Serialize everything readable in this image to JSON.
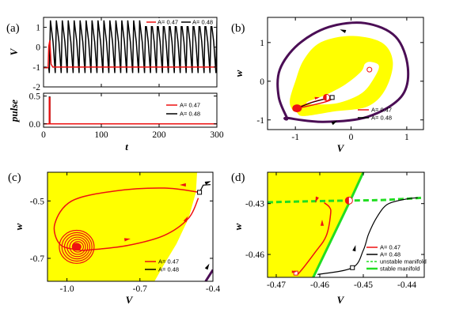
{
  "colors": {
    "red": "#ee1111",
    "black": "#000000",
    "yellow": "#ffff00",
    "purple": "#4b0e55",
    "green": "#22dd22"
  },
  "chart_data": [
    {
      "id": "a_top",
      "type": "line",
      "panel_label": "(a)",
      "xlabel": "",
      "ylabel": "V",
      "xlim": [
        0,
        300
      ],
      "ylim": [
        -2,
        1.5
      ],
      "x_ticks": [
        0,
        100,
        200,
        300
      ],
      "y_ticks": [
        -2,
        -1,
        0,
        1
      ],
      "y_tick_labels": [
        "-2",
        "-1",
        "0",
        "1"
      ],
      "legend": {
        "position": "top-right",
        "entries": [
          "A= 0.47",
          "A= 0.48"
        ]
      },
      "series": [
        {
          "name": "A= 0.47",
          "color": "red",
          "description": "small spike near t=10, then rests at V≈-1",
          "points": [
            [
              0,
              -1.03
            ],
            [
              8,
              -1.03
            ],
            [
              9,
              0.05
            ],
            [
              11,
              0.35
            ],
            [
              13,
              -0.85
            ],
            [
              16,
              -1.0
            ],
            [
              300,
              -1.0
            ]
          ]
        },
        {
          "name": "A= 0.48",
          "color": "black",
          "description": "sustained oscillation between -1.3 and 1.35 with period ≈10.3",
          "x_start": 10,
          "period": 10.3,
          "min": -1.3,
          "max": 1.35
        }
      ]
    },
    {
      "id": "a_bottom",
      "type": "line",
      "xlabel": "t",
      "ylabel": "pulse",
      "xlim": [
        0,
        300
      ],
      "ylim": [
        -0.06,
        0.55
      ],
      "x_ticks": [
        0,
        100,
        200,
        300
      ],
      "x_tick_labels": [
        "0",
        "100",
        "200",
        "300"
      ],
      "y_ticks": [
        0.0,
        0.5
      ],
      "y_tick_labels": [
        "0.0",
        "0.5"
      ],
      "legend": {
        "position": "right",
        "entries": [
          "A= 0.47",
          "A= 0.48"
        ]
      },
      "series": [
        {
          "name": "A= 0.47",
          "color": "red",
          "points": [
            [
              0,
              0
            ],
            [
              10,
              0
            ],
            [
              10,
              0.47
            ],
            [
              11,
              0.47
            ],
            [
              11,
              0
            ],
            [
              300,
              0
            ]
          ]
        },
        {
          "name": "A= 0.48",
          "color": "black",
          "points": [
            [
              0,
              0
            ],
            [
              10,
              0
            ],
            [
              10,
              0.48
            ],
            [
              11,
              0.48
            ],
            [
              11,
              0
            ],
            [
              300,
              0
            ]
          ]
        }
      ]
    },
    {
      "id": "b",
      "type": "line",
      "panel_label": "(b)",
      "xlabel": "V",
      "ylabel": "w",
      "xlim": [
        -1.5,
        1.3
      ],
      "ylim": [
        -1.25,
        1.65
      ],
      "x_ticks": [
        -1,
        0,
        1
      ],
      "x_tick_labels": [
        "-1",
        "0",
        "1"
      ],
      "y_ticks": [
        -1,
        0,
        1
      ],
      "y_tick_labels": [
        "-1",
        "0",
        "1"
      ],
      "legend": {
        "position": "lower-right",
        "entries": [
          "A= 0.47",
          "A= 0.48"
        ]
      },
      "regions": [
        {
          "name": "yellow basin",
          "color": "yellow",
          "points": [
            [
              -0.98,
              -0.8
            ],
            [
              -0.85,
              -0.9
            ],
            [
              -0.3,
              -0.78
            ],
            [
              0.3,
              -0.65
            ],
            [
              0.62,
              -0.2
            ],
            [
              0.75,
              0.5
            ],
            [
              0.55,
              1.0
            ],
            [
              0.0,
              1.17
            ],
            [
              -0.55,
              1.0
            ],
            [
              -0.85,
              0.55
            ],
            [
              -1.0,
              0.0
            ],
            [
              -1.1,
              -0.5
            ],
            [
              -1.05,
              -0.75
            ]
          ]
        },
        {
          "name": "inner white",
          "color": "white",
          "points": [
            [
              -0.8,
              -0.55
            ],
            [
              -0.45,
              -0.35
            ],
            [
              -0.1,
              -0.08
            ],
            [
              0.18,
              0.25
            ],
            [
              0.25,
              0.45
            ],
            [
              0.35,
              0.5
            ],
            [
              0.5,
              0.4
            ],
            [
              0.42,
              0.1
            ],
            [
              0.2,
              -0.3
            ],
            [
              -0.2,
              -0.55
            ],
            [
              -0.6,
              -0.6
            ]
          ]
        }
      ],
      "series": [
        {
          "name": "limit cycle",
          "color": "purple",
          "points": [
            [
              -1.15,
              -0.95
            ],
            [
              -0.5,
              -1.05
            ],
            [
              0.3,
              -0.92
            ],
            [
              0.9,
              -0.4
            ],
            [
              1.02,
              0.35
            ],
            [
              0.8,
              1.15
            ],
            [
              0.25,
              1.5
            ],
            [
              -0.4,
              1.4
            ],
            [
              -0.95,
              0.95
            ],
            [
              -1.28,
              0.3
            ],
            [
              -1.3,
              -0.4
            ],
            [
              -1.15,
              -0.95
            ]
          ]
        },
        {
          "name": "A= 0.47",
          "color": "red",
          "points": [
            [
              -0.98,
              -0.7
            ],
            [
              -0.85,
              -0.62
            ],
            [
              -0.6,
              -0.5
            ],
            [
              -0.4,
              -0.45
            ],
            [
              -0.35,
              -0.47
            ],
            [
              -0.5,
              -0.55
            ],
            [
              -0.8,
              -0.65
            ],
            [
              -0.98,
              -0.7
            ]
          ]
        },
        {
          "name": "A= 0.48",
          "color": "black",
          "points": [
            [
              -0.98,
              -0.7
            ],
            [
              -0.7,
              -0.55
            ],
            [
              -0.45,
              -0.45
            ],
            [
              -0.32,
              -0.42
            ]
          ]
        }
      ],
      "markers": [
        {
          "name": "stable focus",
          "x": -0.97,
          "y": -0.7,
          "style": "filled-red"
        },
        {
          "name": "saddle",
          "x": -0.44,
          "y": -0.42,
          "style": "half-red"
        },
        {
          "name": "unstable focus",
          "x": 0.33,
          "y": 0.3,
          "style": "open-red"
        },
        {
          "name": "start square",
          "x": -0.34,
          "y": -0.42,
          "style": "open-square"
        }
      ]
    },
    {
      "id": "c",
      "type": "line",
      "panel_label": "(c)",
      "xlabel": "V",
      "ylabel": "w",
      "xlim": [
        -1.08,
        -0.4
      ],
      "ylim": [
        -0.78,
        -0.4
      ],
      "x_ticks": [
        -1.0,
        -0.7,
        -0.4
      ],
      "x_tick_labels": [
        "-1.0",
        "-0.7",
        "-0.4"
      ],
      "y_ticks": [
        -0.5,
        -0.7
      ],
      "y_tick_labels": [
        "-0.5",
        "-0.7"
      ],
      "legend": {
        "position": "lower-right",
        "entries": [
          "A= 0.47",
          "A= 0.48"
        ]
      },
      "series": [
        {
          "name": "A= 0.47",
          "color": "red",
          "points": [
            [
              -0.455,
              -0.47
            ],
            [
              -0.6,
              -0.455
            ],
            [
              -0.8,
              -0.465
            ],
            [
              -0.98,
              -0.5
            ],
            [
              -1.05,
              -0.58
            ],
            [
              -1.03,
              -0.65
            ],
            [
              -0.96,
              -0.67
            ],
            [
              -0.9,
              -0.67
            ],
            [
              -0.75,
              -0.655
            ],
            [
              -0.6,
              -0.62
            ],
            [
              -0.5,
              -0.56
            ],
            [
              -0.46,
              -0.49
            ]
          ]
        },
        {
          "name": "A= 0.48",
          "color": "black",
          "points": [
            [
              -0.455,
              -0.47
            ],
            [
              -0.44,
              -0.445
            ],
            [
              -0.41,
              -0.443
            ]
          ]
        },
        {
          "name": "limit cycle",
          "color": "purple",
          "points": [
            [
              -0.43,
              -0.78
            ],
            [
              -0.4,
              -0.74
            ]
          ]
        }
      ],
      "markers": [
        {
          "name": "spiral focus",
          "x": -0.96,
          "y": -0.66,
          "style": "filled-red"
        },
        {
          "name": "start square",
          "x": -0.455,
          "y": -0.47,
          "style": "open-square"
        }
      ]
    },
    {
      "id": "d",
      "type": "line",
      "panel_label": "(d)",
      "xlabel": "V",
      "ylabel": "w",
      "xlim": [
        -0.472,
        -0.436
      ],
      "ylim": [
        -0.4735,
        -0.4115
      ],
      "x_ticks": [
        -0.47,
        -0.46,
        -0.45,
        -0.44
      ],
      "x_tick_labels": [
        "-0.47",
        "-0.46",
        "-0.45",
        "-0.44"
      ],
      "y_ticks": [
        -0.43,
        -0.46
      ],
      "y_tick_labels": [
        "-0.43",
        "-0.46"
      ],
      "legend": {
        "position": "lower-right",
        "entries": [
          "A= 0.47",
          "A= 0.48",
          "unstable manifold",
          "stable manifold"
        ]
      },
      "series": [
        {
          "name": "A= 0.47",
          "color": "red",
          "points": [
            [
              -0.4655,
              -0.471
            ],
            [
              -0.4648,
              -0.471
            ],
            [
              -0.461,
              -0.4585
            ],
            [
              -0.4585,
              -0.449
            ],
            [
              -0.4575,
              -0.436
            ],
            [
              -0.4578,
              -0.432
            ],
            [
              -0.459,
              -0.4295
            ]
          ]
        },
        {
          "name": "A= 0.48",
          "color": "black",
          "points": [
            [
              -0.4605,
              -0.4718
            ],
            [
              -0.4525,
              -0.4678
            ],
            [
              -0.45,
              -0.4575
            ],
            [
              -0.4488,
              -0.448
            ],
            [
              -0.447,
              -0.4385
            ],
            [
              -0.4445,
              -0.4305
            ],
            [
              -0.4405,
              -0.4275
            ],
            [
              -0.4375,
              -0.4265
            ]
          ]
        },
        {
          "name": "unstable manifold",
          "color": "green",
          "dashed": true,
          "points": [
            [
              -0.472,
              -0.4292
            ],
            [
              -0.46,
              -0.4285
            ],
            [
              -0.453,
              -0.4282
            ],
            [
              -0.445,
              -0.4278
            ],
            [
              -0.436,
              -0.4265
            ]
          ]
        },
        {
          "name": "stable manifold",
          "color": "green",
          "points": [
            [
              -0.4615,
              -0.4735
            ],
            [
              -0.453,
              -0.4282
            ],
            [
              -0.45,
              -0.4115
            ]
          ]
        }
      ],
      "markers": [
        {
          "name": "saddle",
          "x": -0.4533,
          "y": -0.4282,
          "style": "half-red"
        },
        {
          "name": "start red square",
          "x": -0.4655,
          "y": -0.471,
          "style": "open-square-red"
        },
        {
          "name": "start black square",
          "x": -0.4525,
          "y": -0.4678,
          "style": "open-square"
        }
      ]
    }
  ]
}
